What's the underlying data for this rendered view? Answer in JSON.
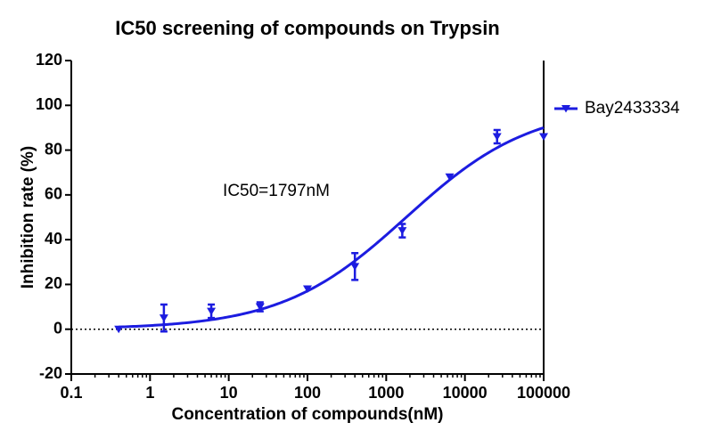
{
  "chart_data": {
    "type": "dose-response",
    "title": "IC50 screening of compounds on  Trypsin",
    "x_label": "Concentration of compounds(nM)",
    "y_label": "Inhibition rate (%)",
    "annotation": "IC50=1797nM",
    "x_scale": "log",
    "xlim": [
      0.1,
      100000
    ],
    "xticks": [
      0.1,
      1,
      10,
      100,
      1000,
      10000,
      100000
    ],
    "ylim": [
      -20,
      120
    ],
    "yticks": [
      -20,
      0,
      20,
      40,
      60,
      80,
      100,
      120
    ],
    "reference_line": 0,
    "legend": "right",
    "x": [
      0.4,
      1.5,
      6,
      25,
      100,
      400,
      1600,
      6400,
      25600,
      100000
    ],
    "series": [
      {
        "name": "Bay2433334",
        "color": "#1c1ce0",
        "values": [
          0,
          5,
          8,
          10,
          18,
          28,
          44,
          68,
          86,
          86
        ],
        "errors": [
          null,
          6,
          3,
          2,
          null,
          6,
          3,
          null,
          3,
          null
        ]
      }
    ],
    "fit": {
      "bottom": 0,
      "top": 100,
      "ic50": 1797,
      "hill": 0.547
    }
  }
}
